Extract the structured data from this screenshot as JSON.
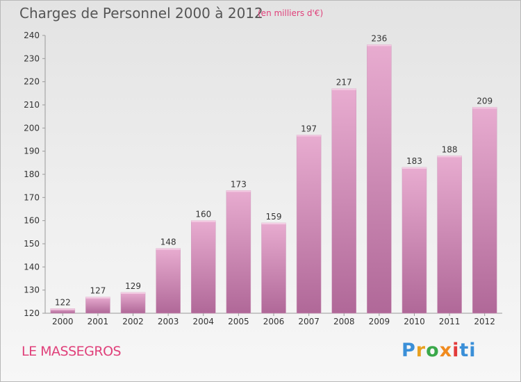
{
  "header": {
    "title": "Charges de Personnel 2000 à 2012",
    "subtitle": "(en milliers d'€)"
  },
  "footer": {
    "place_name": "LE MASSEGROS",
    "logo_text": "Proxiti"
  },
  "colors": {
    "bar_light": "#e8acd0",
    "bar_dark": "#b06898",
    "accent": "#e0407a",
    "axis": "#999999"
  },
  "chart_data": {
    "type": "bar",
    "title": "Charges de Personnel 2000 à 2012",
    "subtitle": "(en milliers d'€)",
    "categories": [
      "2000",
      "2001",
      "2002",
      "2003",
      "2004",
      "2005",
      "2006",
      "2007",
      "2008",
      "2009",
      "2010",
      "2011",
      "2012"
    ],
    "values": [
      122,
      127,
      129,
      148,
      160,
      173,
      159,
      197,
      217,
      236,
      183,
      188,
      209
    ],
    "ylim": [
      120,
      240
    ],
    "yticks": [
      120,
      130,
      140,
      150,
      160,
      170,
      180,
      190,
      200,
      210,
      220,
      230,
      240
    ],
    "grid": false,
    "legend": "none"
  }
}
